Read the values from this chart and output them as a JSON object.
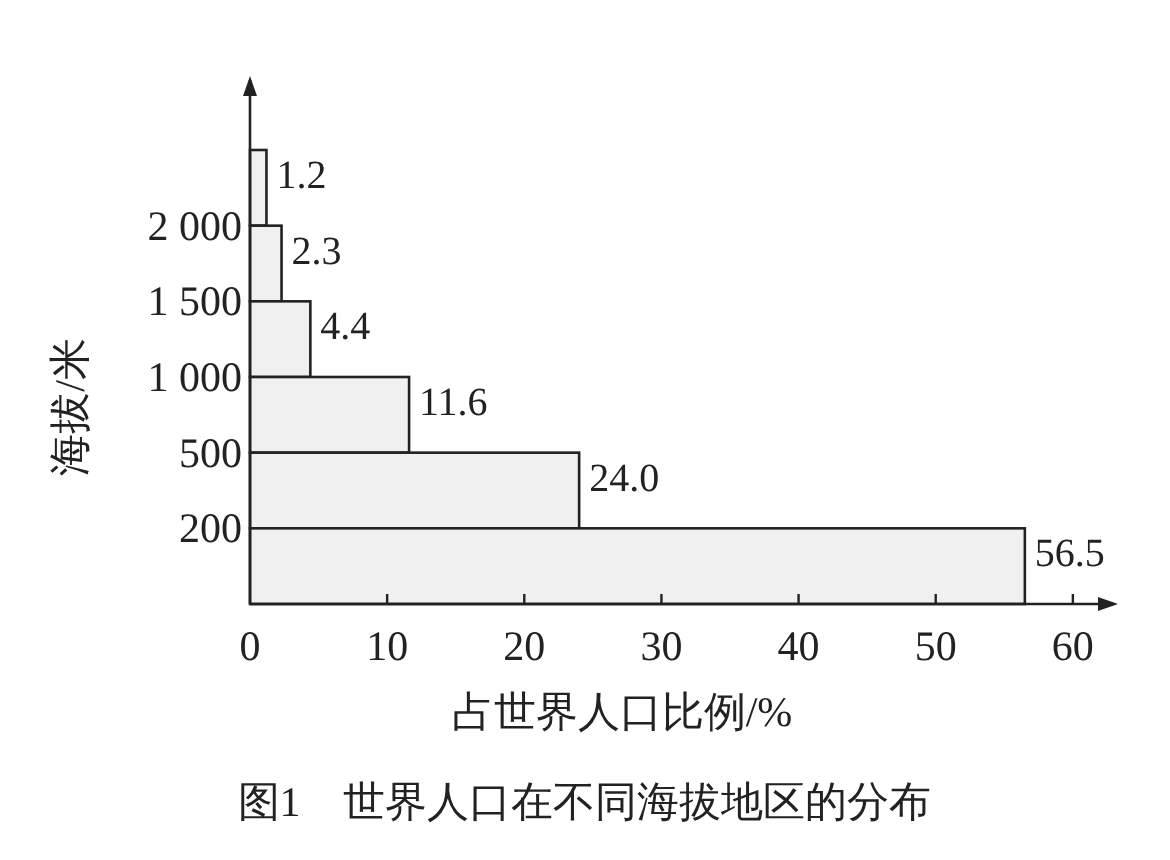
{
  "chart_data": {
    "type": "bar",
    "orientation": "horizontal",
    "title": "图1　世界人口在不同海拔地区的分布",
    "xlabel": "占世界人口比例/%",
    "ylabel": "海拔/米",
    "categories": [
      null,
      "2 000",
      "1 500",
      "1 000",
      "500",
      "200"
    ],
    "values": [
      1.2,
      2.3,
      4.4,
      11.6,
      24.0,
      56.5
    ],
    "value_labels": [
      "1.2",
      "2.3",
      "4.4",
      "11.6",
      "24.0",
      "56.5"
    ],
    "color": "#f0f0f0",
    "xlim": [
      0,
      63
    ],
    "xticks": [
      0,
      10,
      20,
      30,
      40,
      50,
      60
    ],
    "grid": false,
    "legend": false
  }
}
